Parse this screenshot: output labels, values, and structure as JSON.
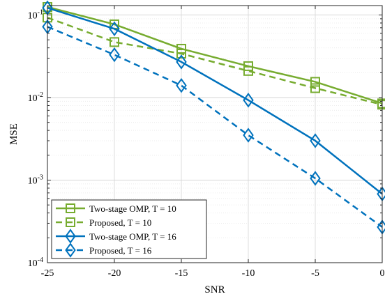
{
  "chart_data": {
    "type": "line",
    "xlabel": "SNR",
    "ylabel": "MSE",
    "x": [
      -25,
      -20,
      -15,
      -10,
      -5,
      0
    ],
    "xlim": [
      -25,
      0
    ],
    "ylim": [
      0.0001,
      0.13
    ],
    "yscale": "log",
    "grid": true,
    "legend_position": "bottom-left",
    "x_tick_labels": [
      "-25",
      "-20",
      "-15",
      "-10",
      "-5",
      "0"
    ],
    "y_ticks": [
      {
        "value": 0.0001,
        "base": "10",
        "exp": "-4"
      },
      {
        "value": 0.001,
        "base": "10",
        "exp": "-3"
      },
      {
        "value": 0.01,
        "base": "10",
        "exp": "-2"
      },
      {
        "value": 0.1,
        "base": "10",
        "exp": "-1"
      }
    ],
    "series": [
      {
        "name": "Two-stage OMP, T = 10",
        "color": "#77ac30",
        "line": "solid",
        "marker": "square",
        "values": [
          0.125,
          0.077,
          0.039,
          0.024,
          0.0155,
          0.0085
        ]
      },
      {
        "name": "Proposed, T = 10",
        "color": "#77ac30",
        "line": "dashed",
        "marker": "square",
        "values": [
          0.093,
          0.047,
          0.034,
          0.021,
          0.013,
          0.0082
        ]
      },
      {
        "name": "Two-stage OMP, T = 16",
        "color": "#0072bd",
        "line": "solid",
        "marker": "diamond",
        "values": [
          0.122,
          0.068,
          0.027,
          0.0093,
          0.003,
          0.00068
        ]
      },
      {
        "name": "Proposed, T = 16",
        "color": "#0072bd",
        "line": "dashed",
        "marker": "diamond",
        "values": [
          0.072,
          0.033,
          0.014,
          0.0035,
          0.00105,
          0.00027
        ]
      }
    ]
  }
}
